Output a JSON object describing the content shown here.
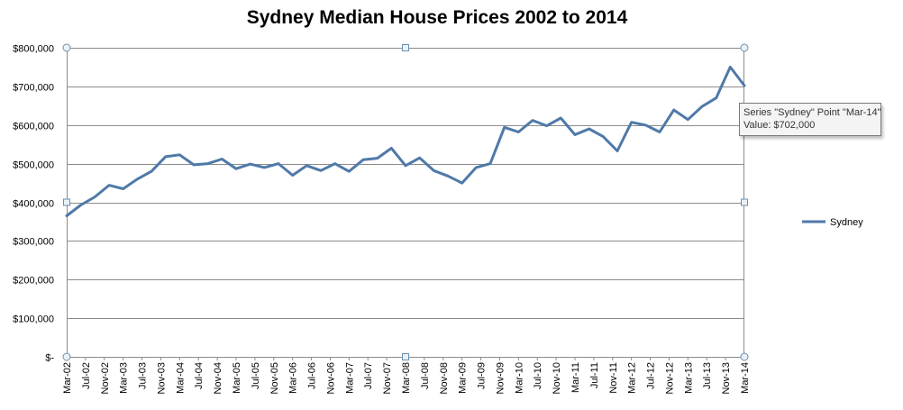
{
  "chart_data": {
    "type": "line",
    "title": "Sydney Median House Prices 2002 to 2014",
    "xlabel": "",
    "ylabel": "",
    "ylim": [
      0,
      800000
    ],
    "yticks": [
      0,
      100000,
      200000,
      300000,
      400000,
      500000,
      600000,
      700000,
      800000
    ],
    "ytick_labels": [
      "$-",
      "$100,000",
      "$200,000",
      "$300,000",
      "$400,000",
      "$500,000",
      "$600,000",
      "$700,000",
      "$800,000"
    ],
    "grid": "horizontal",
    "legend_position": "right",
    "x": [
      "Mar-02",
      "Jun-02",
      "Sep-02",
      "Dec-02",
      "Mar-03",
      "Jun-03",
      "Sep-03",
      "Dec-03",
      "Mar-04",
      "Jun-04",
      "Sep-04",
      "Dec-04",
      "Mar-05",
      "Jun-05",
      "Sep-05",
      "Dec-05",
      "Mar-06",
      "Jun-06",
      "Sep-06",
      "Dec-06",
      "Mar-07",
      "Jun-07",
      "Sep-07",
      "Dec-07",
      "Mar-08",
      "Jun-08",
      "Sep-08",
      "Dec-08",
      "Mar-09",
      "Jun-09",
      "Sep-09",
      "Dec-09",
      "Mar-10",
      "Jun-10",
      "Sep-10",
      "Dec-10",
      "Mar-11",
      "Jun-11",
      "Sep-11",
      "Dec-11",
      "Mar-12",
      "Jun-12",
      "Sep-12",
      "Dec-12",
      "Mar-13",
      "Jun-13",
      "Sep-13",
      "Dec-13",
      "Mar-14"
    ],
    "x_tick_labels": [
      "Mar-02",
      "Jul-02",
      "Nov-02",
      "Mar-03",
      "Jul-03",
      "Nov-03",
      "Mar-04",
      "Jul-04",
      "Nov-04",
      "Mar-05",
      "Jul-05",
      "Nov-05",
      "Mar-06",
      "Jul-06",
      "Nov-06",
      "Mar-07",
      "Jul-07",
      "Nov-07",
      "Mar-08",
      "Jul-08",
      "Nov-08",
      "Mar-09",
      "Jul-09",
      "Nov-09",
      "Mar-10",
      "Jul-10",
      "Nov-10",
      "Mar-11",
      "Jul-11",
      "Nov-11",
      "Mar-12",
      "Jul-12",
      "Nov-12",
      "Mar-13",
      "Jul-13",
      "Nov-13",
      "Mar-14"
    ],
    "series": [
      {
        "name": "Sydney",
        "color": "#4f79a8",
        "values": [
          365000,
          393000,
          414000,
          444000,
          435000,
          460000,
          480000,
          518000,
          523000,
          497000,
          500000,
          512000,
          487000,
          499000,
          490000,
          500000,
          470000,
          495000,
          482000,
          500000,
          480000,
          510000,
          514000,
          540000,
          495000,
          515000,
          482000,
          468000,
          450000,
          490000,
          500000,
          594000,
          582000,
          612000,
          598000,
          618000,
          575000,
          590000,
          570000,
          533000,
          607000,
          600000,
          582000,
          639000,
          614000,
          648000,
          670000,
          750000,
          702000
        ]
      }
    ]
  },
  "tooltip": {
    "line1": "Series \"Sydney\" Point \"Mar-14\"",
    "line2": "Value: $702,000"
  }
}
